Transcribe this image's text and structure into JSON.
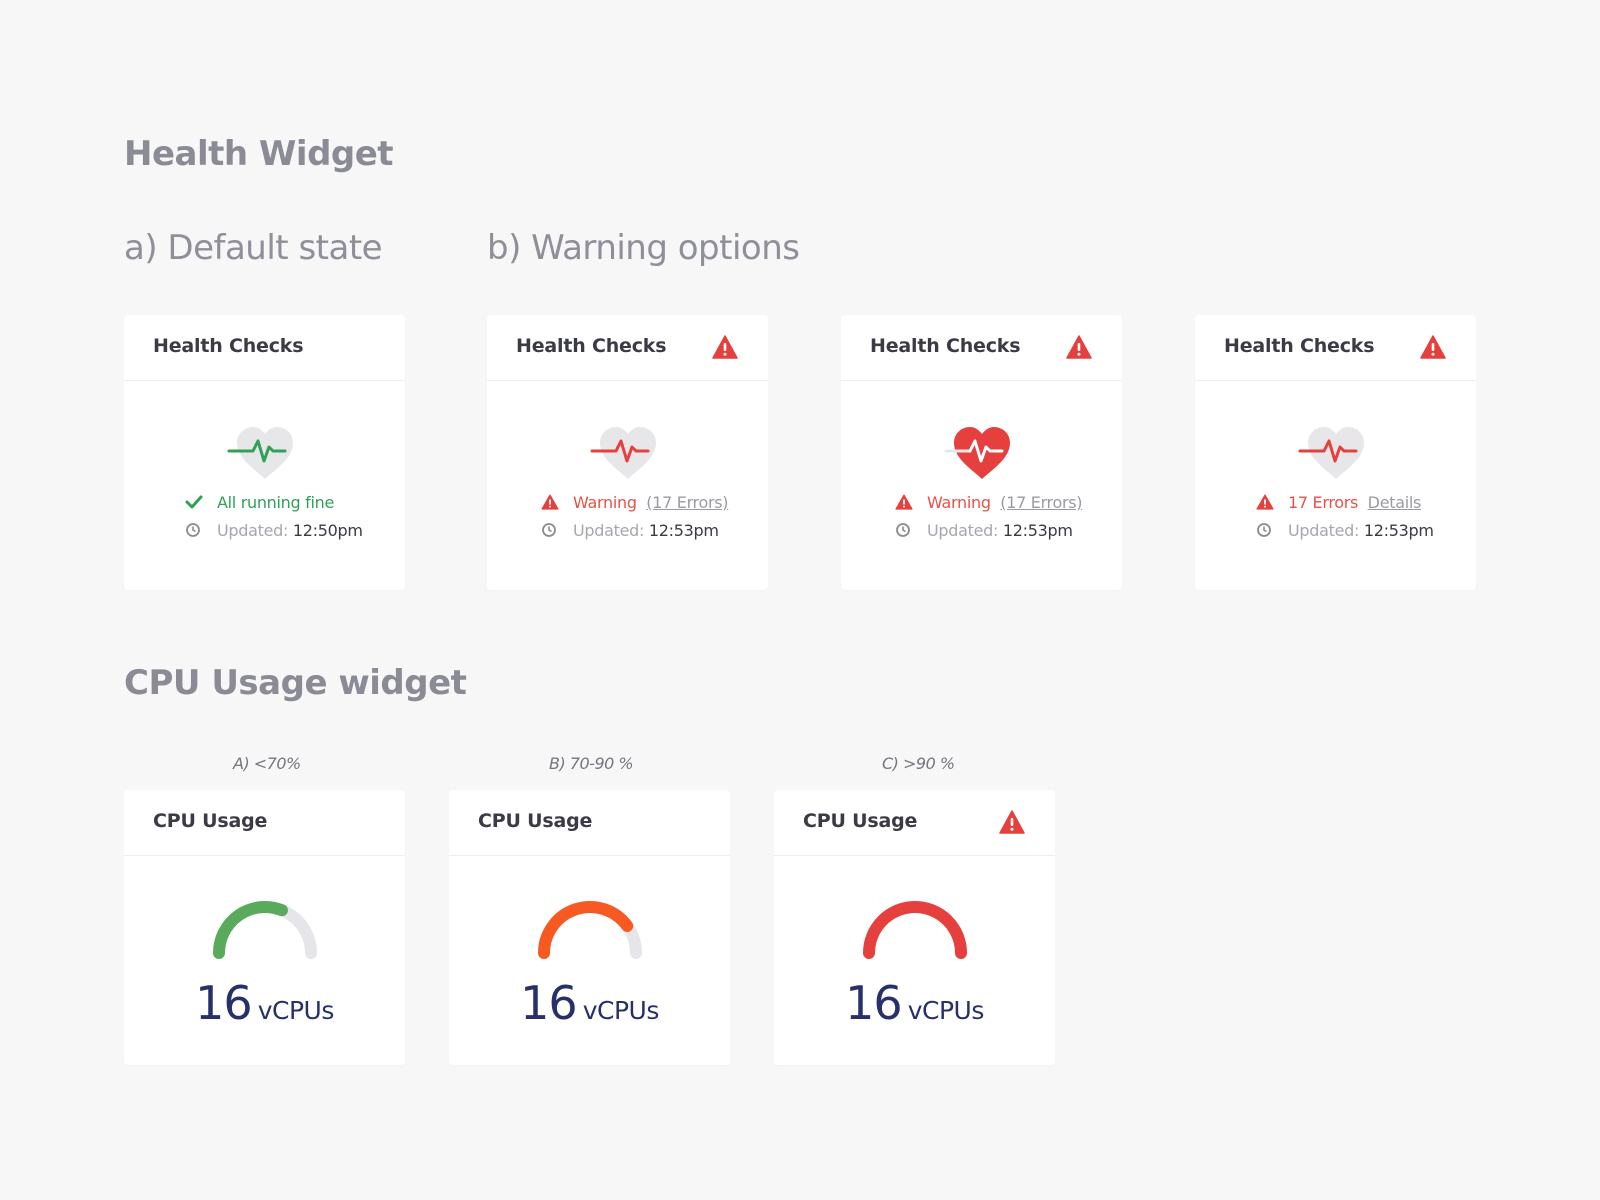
{
  "health_section": {
    "title": "Health Widget",
    "default_label": "a) Default state",
    "warning_label": "b) Warning options"
  },
  "health_cards": [
    {
      "title": "Health Checks",
      "status_text": "All running fine",
      "updated_label": "Updated:",
      "updated_time": "12:50pm"
    },
    {
      "title": "Health Checks",
      "status_text": "Warning",
      "status_link": "(17 Errors)",
      "updated_label": "Updated:",
      "updated_time": "12:53pm"
    },
    {
      "title": "Health Checks",
      "status_text": "Warning",
      "status_link": "(17 Errors)",
      "updated_label": "Updated:",
      "updated_time": "12:53pm"
    },
    {
      "title": "Health Checks",
      "status_text": "17 Errors",
      "status_link": "Details",
      "updated_label": "Updated:",
      "updated_time": "12:53pm"
    }
  ],
  "cpu_section": {
    "title": "CPU Usage widget"
  },
  "cpu_cards": [
    {
      "caption": "A) <70%",
      "title": "CPU Usage",
      "value": "16",
      "unit": "vCPUs",
      "usage_fraction": 0.62,
      "color": "#5aaa5c"
    },
    {
      "caption": "B) 70-90 %",
      "title": "CPU Usage",
      "value": "16",
      "unit": "vCPUs",
      "usage_fraction": 0.8,
      "color": "#f65a22"
    },
    {
      "caption": "C) >90 %",
      "title": "CPU Usage",
      "value": "16",
      "unit": "vCPUs",
      "usage_fraction": 1.0,
      "color": "#e5403d"
    }
  ],
  "colors": {
    "ok": "#2fa157",
    "warning": "#e4534b",
    "gauge_track": "#e5e5ea",
    "value_text": "#27306a"
  },
  "icons": {
    "check": "checkmark-icon",
    "warning": "warning-triangle-icon",
    "clock": "clock-icon",
    "heart": "heart-pulse-icon"
  }
}
